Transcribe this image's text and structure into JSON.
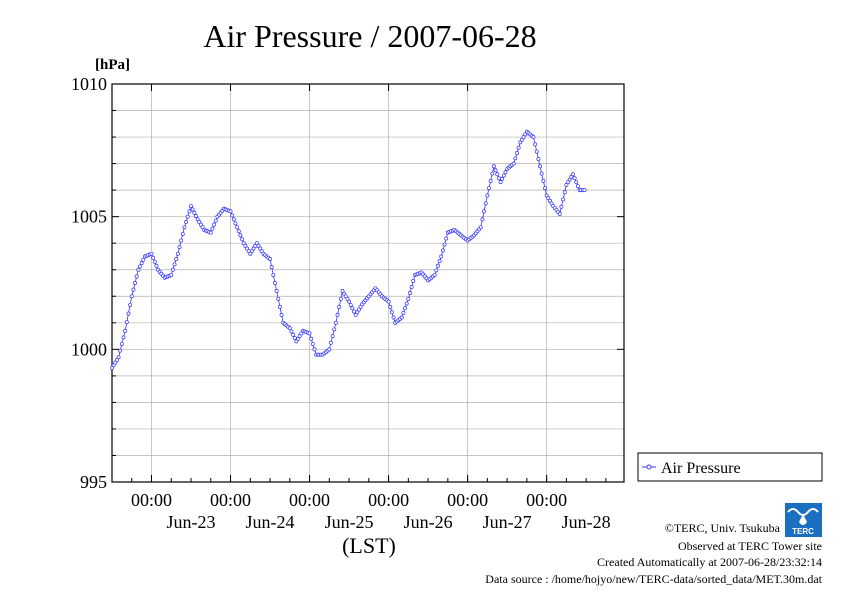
{
  "chart_data": {
    "type": "line",
    "title": "Air Pressure / 2007-06-28",
    "ylabel": "[hPa]",
    "xlabel": "(LST)",
    "ylim": [
      995,
      1010
    ],
    "yticks": [
      995,
      1000,
      1005,
      1010
    ],
    "xlim": [
      "2007-06-22 12:00",
      "2007-06-28 23:30"
    ],
    "xticks": [
      {
        "x": "2007-06-23 00:00",
        "time": "00:00",
        "date": "Jun-23"
      },
      {
        "x": "2007-06-24 00:00",
        "time": "00:00",
        "date": "Jun-24"
      },
      {
        "x": "2007-06-25 00:00",
        "time": "00:00",
        "date": "Jun-25"
      },
      {
        "x": "2007-06-26 00:00",
        "time": "00:00",
        "date": "Jun-26"
      },
      {
        "x": "2007-06-27 00:00",
        "time": "00:00",
        "date": "Jun-27"
      },
      {
        "x": "2007-06-28 00:00",
        "time": "00:00",
        "date": "Jun-28"
      }
    ],
    "grid": true,
    "legend": "right",
    "series": [
      {
        "name": "Air Pressure",
        "color": "#3333ff",
        "points": [
          [
            "2007-06-22 12:00",
            999.3
          ],
          [
            "2007-06-22 14:00",
            999.7
          ],
          [
            "2007-06-22 16:00",
            1000.7
          ],
          [
            "2007-06-22 18:00",
            1002.0
          ],
          [
            "2007-06-22 20:00",
            1003.0
          ],
          [
            "2007-06-22 22:00",
            1003.5
          ],
          [
            "2007-06-23 00:00",
            1003.6
          ],
          [
            "2007-06-23 02:00",
            1003.0
          ],
          [
            "2007-06-23 04:00",
            1002.7
          ],
          [
            "2007-06-23 06:00",
            1002.8
          ],
          [
            "2007-06-23 08:00",
            1003.6
          ],
          [
            "2007-06-23 10:00",
            1004.6
          ],
          [
            "2007-06-23 12:00",
            1005.4
          ],
          [
            "2007-06-23 14:00",
            1004.9
          ],
          [
            "2007-06-23 16:00",
            1004.5
          ],
          [
            "2007-06-23 18:00",
            1004.4
          ],
          [
            "2007-06-23 20:00",
            1005.0
          ],
          [
            "2007-06-23 22:00",
            1005.3
          ],
          [
            "2007-06-24 00:00",
            1005.2
          ],
          [
            "2007-06-24 02:00",
            1004.6
          ],
          [
            "2007-06-24 04:00",
            1004.0
          ],
          [
            "2007-06-24 06:00",
            1003.6
          ],
          [
            "2007-06-24 08:00",
            1004.0
          ],
          [
            "2007-06-24 10:00",
            1003.6
          ],
          [
            "2007-06-24 12:00",
            1003.4
          ],
          [
            "2007-06-24 14:00",
            1002.2
          ],
          [
            "2007-06-24 16:00",
            1001.0
          ],
          [
            "2007-06-24 18:00",
            1000.8
          ],
          [
            "2007-06-24 20:00",
            1000.3
          ],
          [
            "2007-06-24 22:00",
            1000.7
          ],
          [
            "2007-06-25 00:00",
            1000.6
          ],
          [
            "2007-06-25 02:00",
            999.8
          ],
          [
            "2007-06-25 04:00",
            999.8
          ],
          [
            "2007-06-25 06:00",
            1000.0
          ],
          [
            "2007-06-25 08:00",
            1001.0
          ],
          [
            "2007-06-25 10:00",
            1002.2
          ],
          [
            "2007-06-25 12:00",
            1001.8
          ],
          [
            "2007-06-25 14:00",
            1001.3
          ],
          [
            "2007-06-25 16:00",
            1001.7
          ],
          [
            "2007-06-25 18:00",
            1002.0
          ],
          [
            "2007-06-25 20:00",
            1002.3
          ],
          [
            "2007-06-25 22:00",
            1002.0
          ],
          [
            "2007-06-26 00:00",
            1001.8
          ],
          [
            "2007-06-26 02:00",
            1001.0
          ],
          [
            "2007-06-26 04:00",
            1001.2
          ],
          [
            "2007-06-26 06:00",
            1001.9
          ],
          [
            "2007-06-26 08:00",
            1002.8
          ],
          [
            "2007-06-26 10:00",
            1002.9
          ],
          [
            "2007-06-26 12:00",
            1002.6
          ],
          [
            "2007-06-26 14:00",
            1002.8
          ],
          [
            "2007-06-26 16:00",
            1003.5
          ],
          [
            "2007-06-26 18:00",
            1004.4
          ],
          [
            "2007-06-26 20:00",
            1004.5
          ],
          [
            "2007-06-26 22:00",
            1004.3
          ],
          [
            "2007-06-27 00:00",
            1004.1
          ],
          [
            "2007-06-27 02:00",
            1004.3
          ],
          [
            "2007-06-27 04:00",
            1004.6
          ],
          [
            "2007-06-27 06:00",
            1005.8
          ],
          [
            "2007-06-27 08:00",
            1006.9
          ],
          [
            "2007-06-27 10:00",
            1006.3
          ],
          [
            "2007-06-27 12:00",
            1006.8
          ],
          [
            "2007-06-27 14:00",
            1007.0
          ],
          [
            "2007-06-27 16:00",
            1007.8
          ],
          [
            "2007-06-27 18:00",
            1008.2
          ],
          [
            "2007-06-27 20:00",
            1008.0
          ],
          [
            "2007-06-27 22:00",
            1006.9
          ],
          [
            "2007-06-28 00:00",
            1005.8
          ],
          [
            "2007-06-28 02:00",
            1005.4
          ],
          [
            "2007-06-28 04:00",
            1005.1
          ],
          [
            "2007-06-28 06:00",
            1006.2
          ],
          [
            "2007-06-28 08:00",
            1006.6
          ],
          [
            "2007-06-28 10:00",
            1006.0
          ],
          [
            "2007-06-28 11:30",
            1006.0
          ]
        ]
      }
    ]
  },
  "footer": {
    "copyright": "©TERC, Univ. Tsukuba",
    "observed": "Observed at TERC Tower site",
    "created": "Created Automatically at 2007-06-28/23:32:14",
    "source": "Data source : /home/hojyo/new/TERC-data/sorted_data/MET.30m.dat"
  },
  "logo": {
    "text": "TERC",
    "name": "terc-logo-icon",
    "color": "#1a6fc0"
  }
}
